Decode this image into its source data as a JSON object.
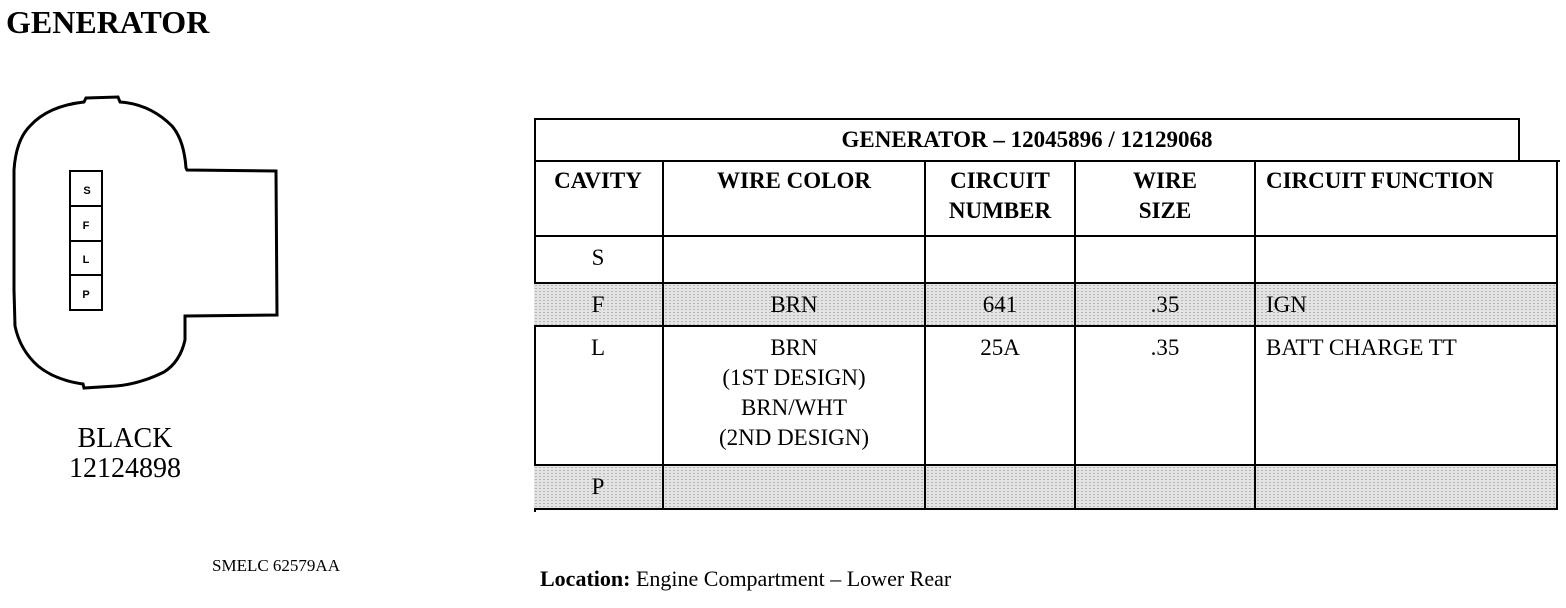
{
  "title": "GENERATOR",
  "connector": {
    "pins": [
      "S",
      "F",
      "L",
      "P"
    ],
    "color": "BLACK",
    "part_number": "12124898",
    "reference": "SMELC 62579AA"
  },
  "table": {
    "title": "GENERATOR – 12045896 / 12129068",
    "headers": [
      "CAVITY",
      "WIRE COLOR",
      "CIRCUIT NUMBER",
      "WIRE SIZE",
      "CIRCUIT FUNCTION"
    ],
    "rows": [
      {
        "cavity": "S",
        "wire_color": "",
        "circuit_number": "",
        "wire_size": "",
        "circuit_function": "",
        "shaded": false
      },
      {
        "cavity": "F",
        "wire_color": "BRN",
        "circuit_number": "641",
        "wire_size": ".35",
        "circuit_function": "IGN",
        "shaded": true
      },
      {
        "cavity": "L",
        "wire_color": "BRN\n(1ST DESIGN)\nBRN/WHT\n(2ND DESIGN)",
        "circuit_number": "25A",
        "wire_size": ".35",
        "circuit_function": "BATT CHARGE TT",
        "shaded": false
      },
      {
        "cavity": "P",
        "wire_color": "",
        "circuit_number": "",
        "wire_size": "",
        "circuit_function": "",
        "shaded": true
      }
    ]
  },
  "location": {
    "label": "Location:",
    "value": " Engine Compartment – Lower Rear"
  }
}
